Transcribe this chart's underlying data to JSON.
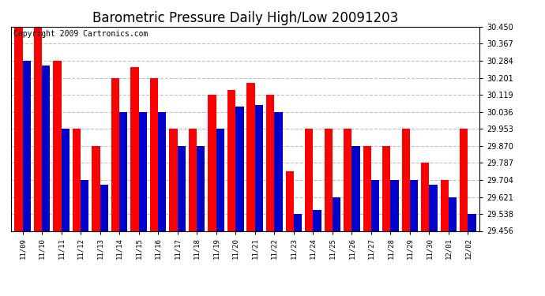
{
  "title": "Barometric Pressure Daily High/Low 20091203",
  "copyright": "Copyright 2009 Cartronics.com",
  "dates": [
    "11/09",
    "11/10",
    "11/11",
    "11/12",
    "11/13",
    "11/14",
    "11/15",
    "11/16",
    "11/17",
    "11/18",
    "11/19",
    "11/20",
    "11/21",
    "11/22",
    "11/23",
    "11/24",
    "11/25",
    "11/26",
    "11/27",
    "11/28",
    "11/29",
    "11/30",
    "12/01",
    "12/02"
  ],
  "highs": [
    30.45,
    30.45,
    30.284,
    29.953,
    29.87,
    30.201,
    30.255,
    30.201,
    29.953,
    29.953,
    30.119,
    30.14,
    30.175,
    30.119,
    29.745,
    29.953,
    29.953,
    29.953,
    29.87,
    29.87,
    29.953,
    29.787,
    29.704,
    29.953
  ],
  "lows": [
    30.284,
    30.26,
    29.953,
    29.704,
    29.68,
    30.036,
    30.036,
    30.036,
    29.87,
    29.87,
    29.953,
    30.06,
    30.07,
    30.036,
    29.538,
    29.556,
    29.621,
    29.87,
    29.704,
    29.704,
    29.704,
    29.68,
    29.621,
    29.538
  ],
  "ymin": 29.456,
  "ymax": 30.45,
  "yticks": [
    29.456,
    29.538,
    29.621,
    29.704,
    29.787,
    29.87,
    29.953,
    30.036,
    30.119,
    30.201,
    30.284,
    30.367,
    30.45
  ],
  "high_color": "#ff0000",
  "low_color": "#0000cc",
  "background_color": "#ffffff",
  "grid_color": "#c0c0c0",
  "title_fontsize": 12,
  "copyright_fontsize": 7,
  "bar_width": 0.42
}
